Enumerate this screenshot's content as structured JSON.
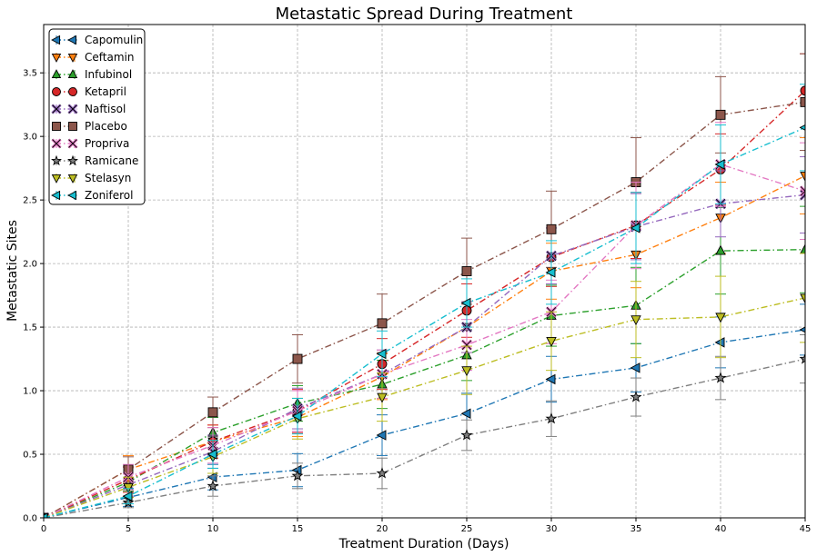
{
  "chart_data": {
    "type": "line",
    "title": "Metastatic Spread During Treatment",
    "xlabel": "Treatment Duration (Days)",
    "ylabel": "Metastatic Sites",
    "x": [
      0,
      5,
      10,
      15,
      20,
      25,
      30,
      35,
      40,
      45
    ],
    "xlim": [
      0,
      45
    ],
    "ylim": [
      0,
      3.88
    ],
    "xticks": [
      "0",
      "5",
      "10",
      "15",
      "20",
      "25",
      "30",
      "35",
      "40",
      "45"
    ],
    "yticks": [
      "0.0",
      "0.5",
      "1.0",
      "1.5",
      "2.0",
      "2.5",
      "3.0",
      "3.5"
    ],
    "grid": true,
    "legend_position": "top-left",
    "series": [
      {
        "name": "Capomulin",
        "color": "#1f77b4",
        "marker": "triangle-left",
        "values": [
          0,
          0.16,
          0.32,
          0.375,
          0.65,
          0.82,
          1.09,
          1.18,
          1.38,
          1.48
        ],
        "errors": [
          0,
          0.07,
          0.1,
          0.13,
          0.16,
          0.16,
          0.18,
          0.19,
          0.2,
          0.2
        ]
      },
      {
        "name": "Ceftamin",
        "color": "#ff7f0e",
        "marker": "triangle-down",
        "values": [
          0,
          0.38,
          0.6,
          0.79,
          1.11,
          1.5,
          1.94,
          2.07,
          2.36,
          2.69
        ],
        "errors": [
          0,
          0.11,
          0.13,
          0.15,
          0.18,
          0.2,
          0.22,
          0.26,
          0.28,
          0.3
        ]
      },
      {
        "name": "Infubinol",
        "color": "#2ca02c",
        "marker": "triangle-up",
        "values": [
          0,
          0.28,
          0.67,
          0.9,
          1.05,
          1.28,
          1.59,
          1.67,
          2.1,
          2.11
        ],
        "errors": [
          0,
          0.07,
          0.12,
          0.14,
          0.19,
          0.2,
          0.24,
          0.3,
          0.34,
          0.34
        ]
      },
      {
        "name": "Ketapril",
        "color": "#d62728",
        "marker": "circle",
        "values": [
          0,
          0.3,
          0.6,
          0.84,
          1.21,
          1.63,
          2.05,
          2.3,
          2.74,
          3.36
        ],
        "errors": [
          0,
          0.1,
          0.13,
          0.17,
          0.2,
          0.21,
          0.23,
          0.26,
          0.28,
          0.29
        ]
      },
      {
        "name": "Naftisol",
        "color": "#9467bd",
        "marker": "x",
        "values": [
          0,
          0.26,
          0.52,
          0.86,
          1.13,
          1.5,
          2.06,
          2.29,
          2.47,
          2.54
        ],
        "errors": [
          0,
          0.09,
          0.13,
          0.16,
          0.19,
          0.2,
          0.22,
          0.26,
          0.26,
          0.3
        ]
      },
      {
        "name": "Placebo",
        "color": "#8c564b",
        "marker": "square",
        "values": [
          0,
          0.38,
          0.83,
          1.25,
          1.53,
          1.94,
          2.27,
          2.64,
          3.17,
          3.27
        ],
        "errors": [
          0,
          0.1,
          0.12,
          0.19,
          0.23,
          0.26,
          0.3,
          0.35,
          0.3,
          0.38
        ]
      },
      {
        "name": "Propriva",
        "color": "#e377c2",
        "marker": "x",
        "values": [
          0,
          0.32,
          0.57,
          0.84,
          1.13,
          1.36,
          1.62,
          2.3,
          2.78,
          2.57
        ],
        "errors": [
          0,
          0.1,
          0.14,
          0.16,
          0.19,
          0.2,
          0.25,
          0.34,
          0.33,
          0.38
        ]
      },
      {
        "name": "Ramicane",
        "color": "#7f7f7f",
        "marker": "star",
        "values": [
          0,
          0.12,
          0.25,
          0.33,
          0.35,
          0.65,
          0.78,
          0.95,
          1.1,
          1.25
        ],
        "errors": [
          0,
          0.04,
          0.08,
          0.1,
          0.12,
          0.12,
          0.14,
          0.15,
          0.17,
          0.19
        ]
      },
      {
        "name": "Stelasyn",
        "color": "#bcbd22",
        "marker": "triangle-down",
        "values": [
          0,
          0.24,
          0.48,
          0.78,
          0.95,
          1.16,
          1.39,
          1.56,
          1.58,
          1.73
        ],
        "errors": [
          0,
          0.08,
          0.13,
          0.16,
          0.19,
          0.19,
          0.23,
          0.3,
          0.32,
          0.35
        ]
      },
      {
        "name": "Zoniferol",
        "color": "#17becf",
        "marker": "triangle-left",
        "values": [
          0,
          0.17,
          0.5,
          0.8,
          1.29,
          1.69,
          1.93,
          2.28,
          2.78,
          3.07
        ],
        "errors": [
          0,
          0.06,
          0.11,
          0.14,
          0.18,
          0.19,
          0.25,
          0.28,
          0.31,
          0.34
        ]
      }
    ]
  }
}
